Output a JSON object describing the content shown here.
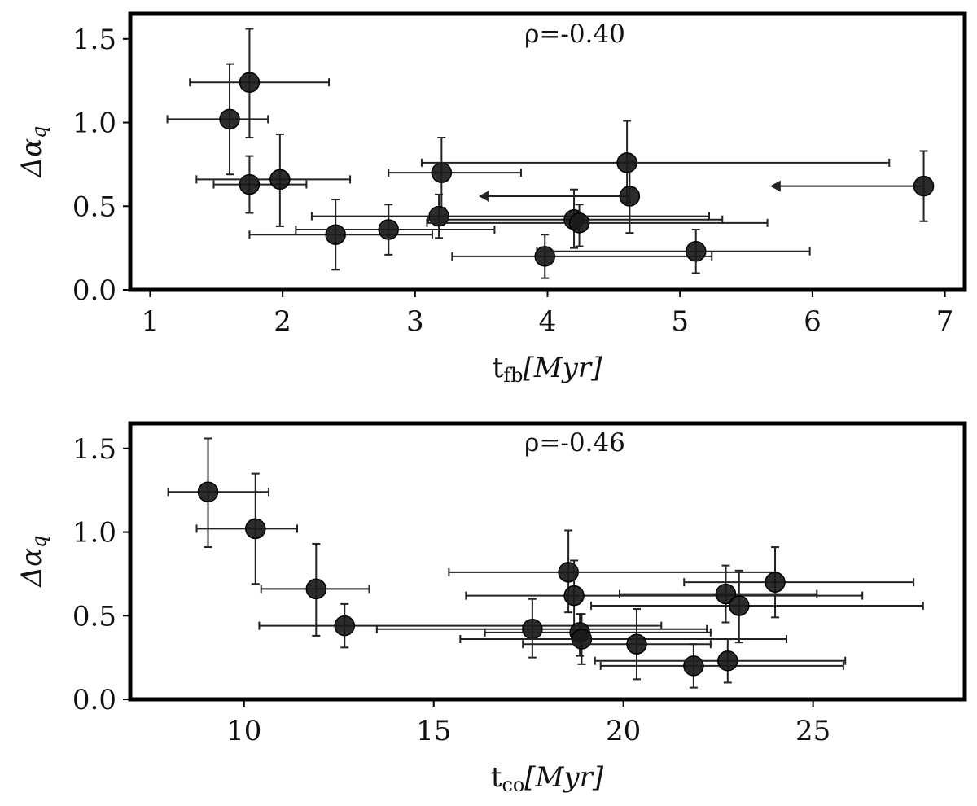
{
  "chart_data": [
    {
      "type": "scatter",
      "annotation": "ρ=-0.40",
      "ylabel_symbol": "Δα",
      "ylabel_sub": "q",
      "xlabel_main": "t",
      "xlabel_sub": "fb",
      "xlabel_units": "[Myr]",
      "xlim": [
        0.85,
        7.15
      ],
      "ylim": [
        0.0,
        1.65
      ],
      "xticks": [
        1,
        2,
        3,
        4,
        5,
        6,
        7
      ],
      "xtick_labels": [
        "1",
        "2",
        "3",
        "4",
        "5",
        "6",
        "7"
      ],
      "yticks": [
        0.0,
        0.5,
        1.0,
        1.5
      ],
      "ytick_labels": [
        "0.0",
        "0.5",
        "1.0",
        "1.5"
      ],
      "points": [
        {
          "x": 1.75,
          "y": 1.24,
          "xerr": [
            0.45,
            0.6
          ],
          "yerr": [
            0.33,
            0.32
          ]
        },
        {
          "x": 1.6,
          "y": 1.02,
          "xerr": [
            0.47,
            0.29
          ],
          "yerr": [
            0.33,
            0.33
          ]
        },
        {
          "x": 1.75,
          "y": 0.63,
          "xerr": [
            0.27,
            0.43
          ],
          "yerr": [
            0.17,
            0.17
          ]
        },
        {
          "x": 1.98,
          "y": 0.66,
          "xerr": [
            0.63,
            0.53
          ],
          "yerr": [
            0.28,
            0.27
          ]
        },
        {
          "x": 2.4,
          "y": 0.33,
          "xerr": [
            0.65,
            0.73
          ],
          "yerr": [
            0.21,
            0.21
          ]
        },
        {
          "x": 2.8,
          "y": 0.36,
          "xerr": [
            0.7,
            0.8
          ],
          "yerr": [
            0.15,
            0.15
          ]
        },
        {
          "x": 3.2,
          "y": 0.7,
          "xerr": [
            0.4,
            0.6
          ],
          "yerr": [
            0.21,
            0.21
          ]
        },
        {
          "x": 3.18,
          "y": 0.44,
          "xerr": [
            0.96,
            2.04
          ],
          "yerr": [
            0.13,
            0.13
          ]
        },
        {
          "x": 3.98,
          "y": 0.2,
          "xerr": [
            0.7,
            1.26
          ],
          "yerr": [
            0.13,
            0.13
          ]
        },
        {
          "x": 4.2,
          "y": 0.42,
          "xerr": [
            1.1,
            1.12
          ],
          "yerr": [
            0.17,
            0.18
          ]
        },
        {
          "x": 4.24,
          "y": 0.4,
          "xerr": [
            1.15,
            1.42
          ],
          "yerr": [
            0.14,
            0.11
          ]
        },
        {
          "x": 4.6,
          "y": 0.76,
          "xerr": [
            1.55,
            1.98
          ],
          "yerr": [
            0.24,
            0.25
          ]
        },
        {
          "x": 4.62,
          "y": 0.56,
          "xerr": [
            0.6,
            0.0
          ],
          "yerr": [
            0.22,
            0.21
          ],
          "upper_limit": true,
          "arrow_to": 3.48
        },
        {
          "x": 5.12,
          "y": 0.23,
          "xerr": [
            1.2,
            0.86
          ],
          "yerr": [
            0.13,
            0.13
          ]
        },
        {
          "x": 6.84,
          "y": 0.62,
          "xerr": [
            1.1,
            0.0
          ],
          "yerr": [
            0.21,
            0.21
          ],
          "upper_limit": true,
          "arrow_to": 5.68
        }
      ]
    },
    {
      "type": "scatter",
      "annotation": "ρ=-0.46",
      "ylabel_symbol": "Δα",
      "ylabel_sub": "q",
      "xlabel_main": "t",
      "xlabel_sub": "co",
      "xlabel_units": "[Myr]",
      "xlim": [
        7.0,
        29.0
      ],
      "ylim": [
        0.0,
        1.65
      ],
      "xticks": [
        10,
        15,
        20,
        25
      ],
      "xtick_labels": [
        "10",
        "15",
        "20",
        "25"
      ],
      "yticks": [
        0.0,
        0.5,
        1.0,
        1.5
      ],
      "ytick_labels": [
        "0.0",
        "0.5",
        "1.0",
        "1.5"
      ],
      "points": [
        {
          "x": 9.05,
          "y": 1.24,
          "xerr": [
            1.05,
            1.6
          ],
          "yerr": [
            0.33,
            0.32
          ]
        },
        {
          "x": 10.3,
          "y": 1.02,
          "xerr": [
            1.55,
            1.1
          ],
          "yerr": [
            0.33,
            0.33
          ]
        },
        {
          "x": 11.9,
          "y": 0.66,
          "xerr": [
            1.45,
            1.4
          ],
          "yerr": [
            0.28,
            0.27
          ]
        },
        {
          "x": 12.65,
          "y": 0.44,
          "xerr": [
            2.25,
            8.35
          ],
          "yerr": [
            0.13,
            0.13
          ]
        },
        {
          "x": 17.6,
          "y": 0.42,
          "xerr": [
            4.1,
            4.6
          ],
          "yerr": [
            0.17,
            0.18
          ]
        },
        {
          "x": 18.55,
          "y": 0.76,
          "xerr": [
            3.15,
            5.45
          ],
          "yerr": [
            0.24,
            0.25
          ]
        },
        {
          "x": 18.7,
          "y": 0.62,
          "xerr": [
            2.85,
            7.6
          ],
          "yerr": [
            0.21,
            0.21
          ]
        },
        {
          "x": 18.85,
          "y": 0.4,
          "xerr": [
            2.5,
            3.45
          ],
          "yerr": [
            0.14,
            0.11
          ]
        },
        {
          "x": 18.9,
          "y": 0.36,
          "xerr": [
            3.2,
            5.4
          ],
          "yerr": [
            0.15,
            0.15
          ]
        },
        {
          "x": 20.35,
          "y": 0.33,
          "xerr": [
            3.0,
            1.95
          ],
          "yerr": [
            0.21,
            0.21
          ]
        },
        {
          "x": 21.85,
          "y": 0.2,
          "xerr": [
            2.45,
            3.95
          ],
          "yerr": [
            0.13,
            0.13
          ]
        },
        {
          "x": 22.75,
          "y": 0.23,
          "xerr": [
            3.5,
            3.1
          ],
          "yerr": [
            0.13,
            0.13
          ]
        },
        {
          "x": 22.7,
          "y": 0.63,
          "xerr": [
            2.8,
            2.4
          ],
          "yerr": [
            0.17,
            0.17
          ]
        },
        {
          "x": 23.05,
          "y": 0.56,
          "xerr": [
            3.9,
            4.85
          ],
          "yerr": [
            0.22,
            0.21
          ]
        },
        {
          "x": 24.0,
          "y": 0.7,
          "xerr": [
            2.4,
            3.65
          ],
          "yerr": [
            0.21,
            0.21
          ]
        }
      ]
    }
  ]
}
